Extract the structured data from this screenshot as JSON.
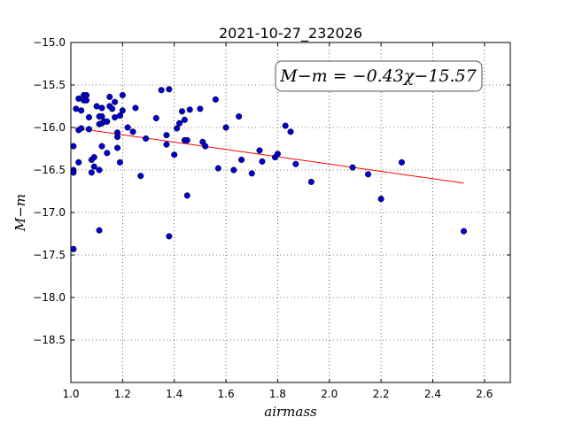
{
  "chart_data": {
    "type": "scatter",
    "title": "2021-10-27_232026",
    "xlabel": "airmass",
    "ylabel": "M−m",
    "xlim": [
      1.0,
      2.7
    ],
    "ylim": [
      -15.0,
      -19.0
    ],
    "y_inverted": true,
    "grid": true,
    "x_ticks": [
      1.0,
      1.2,
      1.4,
      1.6,
      1.8,
      2.0,
      2.2,
      2.4,
      2.6
    ],
    "x_tick_labels": [
      "1.0",
      "1.2",
      "1.4",
      "1.6",
      "1.8",
      "2.0",
      "2.2",
      "2.4",
      "2.6"
    ],
    "y_ticks": [
      -15.0,
      -15.5,
      -16.0,
      -16.5,
      -17.0,
      -17.5,
      -18.0,
      -18.5
    ],
    "y_tick_labels": [
      "−15.0",
      "−15.5",
      "−16.0",
      "−16.5",
      "−17.0",
      "−17.5",
      "−18.0",
      "−18.5"
    ],
    "annotation": "M−m = −0.43χ−15.57",
    "point_color": "#0000cc",
    "fit_color": "#ff0000",
    "fit_line": {
      "slope": -0.43,
      "intercept": -15.57,
      "x_range": [
        1.01,
        2.52
      ]
    },
    "points": [
      [
        1.01,
        -17.43
      ],
      [
        1.01,
        -16.22
      ],
      [
        1.01,
        -16.5
      ],
      [
        1.01,
        -16.53
      ],
      [
        1.02,
        -15.78
      ],
      [
        1.03,
        -16.41
      ],
      [
        1.03,
        -16.03
      ],
      [
        1.03,
        -15.66
      ],
      [
        1.04,
        -16.01
      ],
      [
        1.04,
        -15.8
      ],
      [
        1.05,
        -15.68
      ],
      [
        1.05,
        -15.62
      ],
      [
        1.06,
        -15.62
      ],
      [
        1.06,
        -15.68
      ],
      [
        1.07,
        -16.02
      ],
      [
        1.07,
        -15.88
      ],
      [
        1.08,
        -16.38
      ],
      [
        1.08,
        -16.53
      ],
      [
        1.09,
        -16.35
      ],
      [
        1.09,
        -16.46
      ],
      [
        1.1,
        -15.75
      ],
      [
        1.11,
        -15.87
      ],
      [
        1.11,
        -15.96
      ],
      [
        1.11,
        -16.5
      ],
      [
        1.11,
        -17.21
      ],
      [
        1.12,
        -15.87
      ],
      [
        1.12,
        -15.77
      ],
      [
        1.12,
        -15.95
      ],
      [
        1.12,
        -16.22
      ],
      [
        1.13,
        -15.93
      ],
      [
        1.14,
        -15.93
      ],
      [
        1.14,
        -16.3
      ],
      [
        1.15,
        -15.64
      ],
      [
        1.15,
        -15.75
      ],
      [
        1.16,
        -15.78
      ],
      [
        1.17,
        -15.7
      ],
      [
        1.17,
        -15.88
      ],
      [
        1.18,
        -16.06
      ],
      [
        1.18,
        -16.11
      ],
      [
        1.18,
        -16.24
      ],
      [
        1.19,
        -16.41
      ],
      [
        1.19,
        -15.86
      ],
      [
        1.2,
        -15.62
      ],
      [
        1.2,
        -15.8
      ],
      [
        1.22,
        -16.0
      ],
      [
        1.24,
        -16.05
      ],
      [
        1.25,
        -15.77
      ],
      [
        1.27,
        -16.57
      ],
      [
        1.29,
        -16.13
      ],
      [
        1.33,
        -15.89
      ],
      [
        1.35,
        -15.56
      ],
      [
        1.37,
        -16.09
      ],
      [
        1.37,
        -16.2
      ],
      [
        1.38,
        -15.55
      ],
      [
        1.38,
        -17.28
      ],
      [
        1.4,
        -16.32
      ],
      [
        1.41,
        -16.01
      ],
      [
        1.42,
        -15.95
      ],
      [
        1.43,
        -15.81
      ],
      [
        1.44,
        -15.91
      ],
      [
        1.44,
        -16.15
      ],
      [
        1.45,
        -16.15
      ],
      [
        1.45,
        -16.8
      ],
      [
        1.46,
        -15.79
      ],
      [
        1.5,
        -15.78
      ],
      [
        1.51,
        -16.17
      ],
      [
        1.52,
        -16.22
      ],
      [
        1.56,
        -15.67
      ],
      [
        1.57,
        -16.48
      ],
      [
        1.6,
        -16.0
      ],
      [
        1.63,
        -16.5
      ],
      [
        1.65,
        -15.87
      ],
      [
        1.66,
        -16.38
      ],
      [
        1.7,
        -16.54
      ],
      [
        1.73,
        -16.27
      ],
      [
        1.74,
        -16.4
      ],
      [
        1.79,
        -16.35
      ],
      [
        1.8,
        -16.31
      ],
      [
        1.83,
        -15.98
      ],
      [
        1.85,
        -16.05
      ],
      [
        1.87,
        -16.43
      ],
      [
        1.93,
        -16.64
      ],
      [
        2.09,
        -16.47
      ],
      [
        2.15,
        -16.55
      ],
      [
        2.2,
        -16.84
      ],
      [
        2.28,
        -16.41
      ],
      [
        2.52,
        -17.22
      ]
    ]
  }
}
